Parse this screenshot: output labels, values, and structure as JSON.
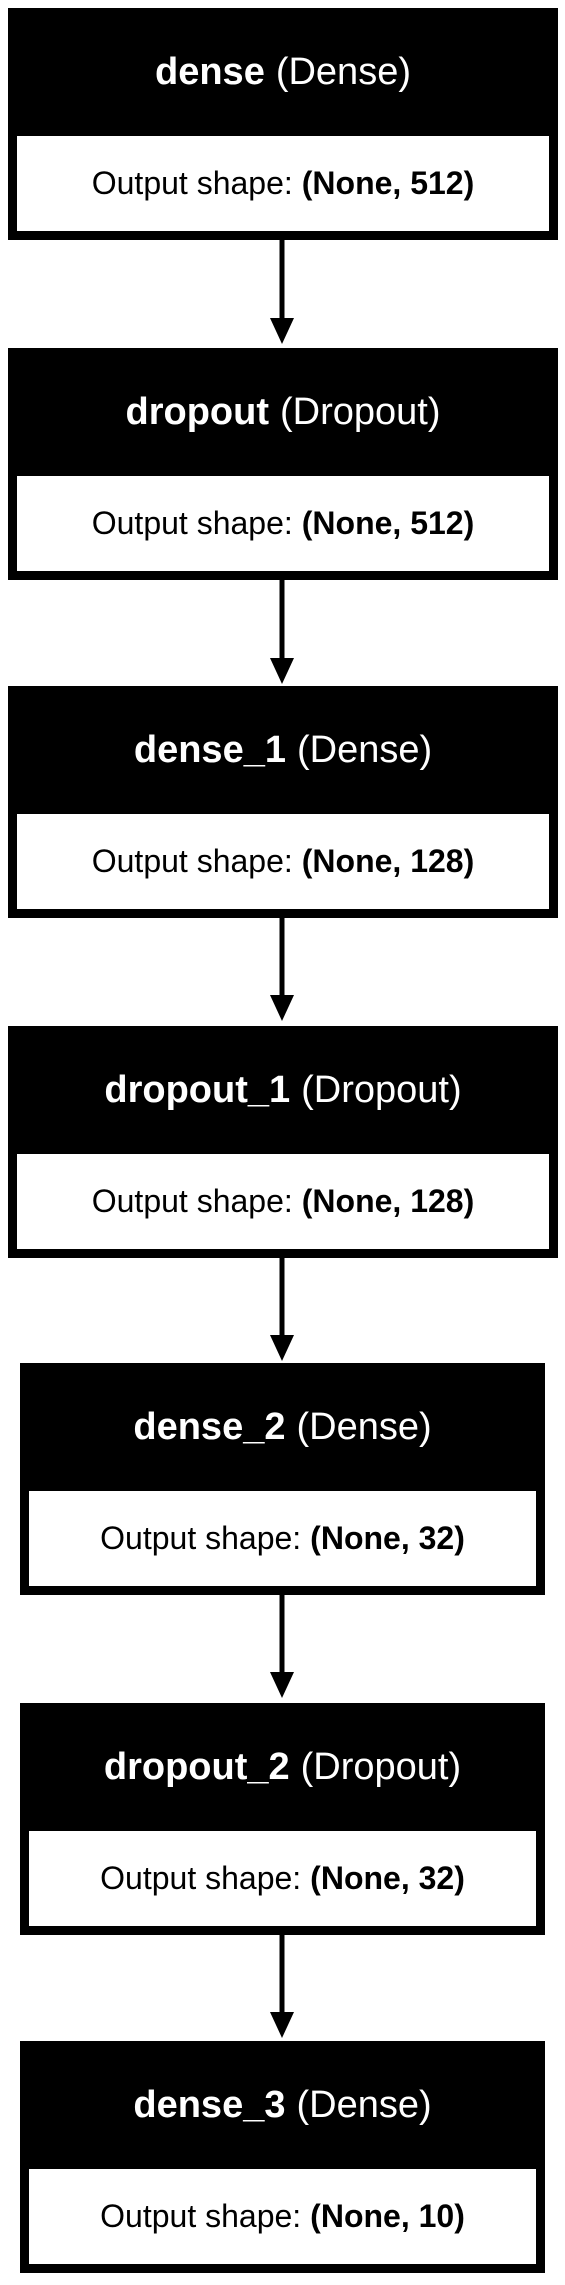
{
  "layers": [
    {
      "name": "dense",
      "type": "(Dense)",
      "shape_label": "Output shape:",
      "shape": "(None, 512)"
    },
    {
      "name": "dropout",
      "type": "(Dropout)",
      "shape_label": "Output shape:",
      "shape": "(None, 512)"
    },
    {
      "name": "dense_1",
      "type": "(Dense)",
      "shape_label": "Output shape:",
      "shape": "(None, 128)"
    },
    {
      "name": "dropout_1",
      "type": "(Dropout)",
      "shape_label": "Output shape:",
      "shape": "(None, 128)"
    },
    {
      "name": "dense_2",
      "type": "(Dense)",
      "shape_label": "Output shape:",
      "shape": "(None, 32)"
    },
    {
      "name": "dropout_2",
      "type": "(Dropout)",
      "shape_label": "Output shape:",
      "shape": "(None, 32)"
    },
    {
      "name": "dense_3",
      "type": "(Dense)",
      "shape_label": "Output shape:",
      "shape": "(None, 10)"
    }
  ],
  "colors": {
    "header_background": "#000000",
    "header_text": "#ffffff",
    "body_background": "#ffffff",
    "body_text": "#000000",
    "arrow": "#000000"
  }
}
